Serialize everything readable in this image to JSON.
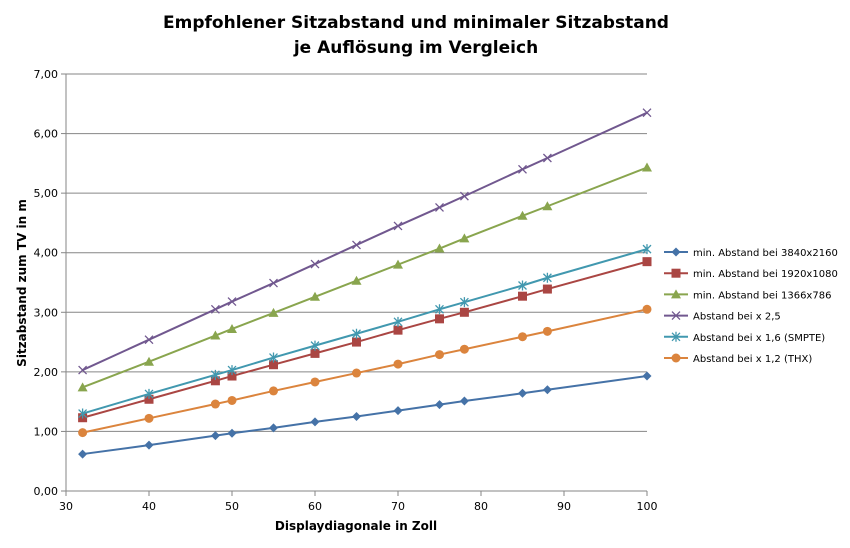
{
  "chart_data": {
    "type": "line",
    "title": "Empfohlener Sitzabstand und minimaler Sitzabstand je Auflösung im Vergleich",
    "title_lines": [
      "Empfohlener Sitzabstand und minimaler Sitzabstand",
      "je Auflösung im Vergleich"
    ],
    "xlabel": "Displaydiagonale in Zoll",
    "ylabel": "Sitzabstand zum TV in m",
    "xlim": [
      30,
      100
    ],
    "ylim": [
      0,
      7
    ],
    "xticks": [
      30,
      40,
      50,
      60,
      70,
      80,
      90,
      100
    ],
    "yticks": [
      "0,00",
      "1,00",
      "2,00",
      "3,00",
      "4,00",
      "5,00",
      "6,00",
      "7,00"
    ],
    "grid": "horizontal",
    "legend": "right",
    "x": [
      32,
      40,
      48,
      50,
      55,
      60,
      65,
      70,
      75,
      78,
      85,
      88,
      100
    ],
    "series": [
      {
        "name": "min. Abstand bei 3840x2160",
        "color": "#4572a7",
        "marker": "diamond",
        "values": [
          0.62,
          0.77,
          0.93,
          0.97,
          1.06,
          1.16,
          1.25,
          1.35,
          1.45,
          1.51,
          1.64,
          1.7,
          1.93
        ]
      },
      {
        "name": "min. Abstand bei 1920x1080",
        "color": "#aa4643",
        "marker": "square",
        "values": [
          1.23,
          1.54,
          1.85,
          1.93,
          2.12,
          2.31,
          2.5,
          2.7,
          2.89,
          3.0,
          3.27,
          3.39,
          3.85
        ]
      },
      {
        "name": "min. Abstand bei 1366x786",
        "color": "#89a54e",
        "marker": "triangle",
        "values": [
          1.74,
          2.17,
          2.61,
          2.72,
          2.99,
          3.26,
          3.53,
          3.8,
          4.07,
          4.24,
          4.62,
          4.78,
          5.43
        ]
      },
      {
        "name": "Abstand bei x 2,5",
        "color": "#71588f",
        "marker": "x",
        "values": [
          2.03,
          2.54,
          3.05,
          3.18,
          3.49,
          3.81,
          4.13,
          4.45,
          4.76,
          4.95,
          5.4,
          5.59,
          6.35
        ]
      },
      {
        "name": "Abstand bei x 1,6 (SMPTE)",
        "color": "#4198af",
        "marker": "star",
        "values": [
          1.3,
          1.63,
          1.95,
          2.03,
          2.24,
          2.44,
          2.64,
          2.84,
          3.05,
          3.17,
          3.45,
          3.58,
          4.06
        ]
      },
      {
        "name": "Abstand bei x 1,2 (THX)",
        "color": "#db843d",
        "marker": "circle",
        "values": [
          0.98,
          1.22,
          1.46,
          1.52,
          1.68,
          1.83,
          1.98,
          2.13,
          2.29,
          2.38,
          2.59,
          2.68,
          3.05
        ]
      }
    ]
  }
}
